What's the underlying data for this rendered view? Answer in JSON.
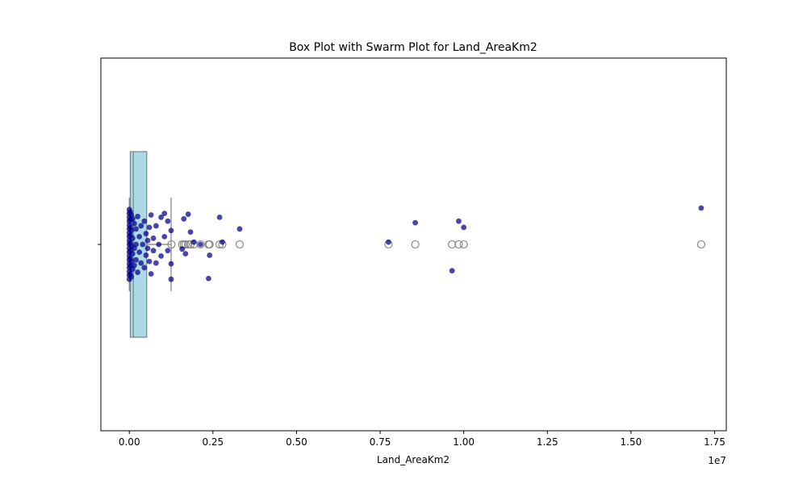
{
  "chart_data": {
    "type": "box",
    "title": "Box Plot with Swarm Plot for Land_AreaKm2",
    "xlabel": "Land_AreaKm2",
    "ylabel": "",
    "x_offset_label": "1e7",
    "xlim": [
      -0.085,
      1.785
    ],
    "x_ticks": [
      0.0,
      0.25,
      0.5,
      0.75,
      1.0,
      1.25,
      1.5,
      1.75
    ],
    "x_tick_labels": [
      "0.00",
      "0.25",
      "0.50",
      "0.75",
      "1.00",
      "1.25",
      "1.50",
      "1.75"
    ],
    "grid": false,
    "colors": {
      "box_fill": "#add8e6",
      "box_edge": "#808080",
      "swarm_point": "#00008b",
      "outlier_edge": "#808080"
    },
    "box": {
      "min": 0.0,
      "q1": 0.003,
      "median": 0.012,
      "q3": 0.052,
      "whisker_high": 0.125
    },
    "outliers": [
      0.126,
      0.158,
      0.163,
      0.168,
      0.176,
      0.183,
      0.193,
      0.213,
      0.237,
      0.24,
      0.27,
      0.278,
      0.33,
      0.775,
      0.855,
      0.965,
      0.985,
      1.0,
      1.71
    ],
    "swarm": [
      {
        "x": 0.0,
        "y": 0.45
      },
      {
        "x": 0.0,
        "y": 0.4
      },
      {
        "x": 0.0,
        "y": 0.35
      },
      {
        "x": 0.0,
        "y": 0.3
      },
      {
        "x": 0.0,
        "y": 0.25
      },
      {
        "x": 0.0,
        "y": 0.2
      },
      {
        "x": 0.0,
        "y": 0.15
      },
      {
        "x": 0.0,
        "y": 0.1
      },
      {
        "x": 0.0,
        "y": 0.05
      },
      {
        "x": 0.0,
        "y": 0.0
      },
      {
        "x": 0.0,
        "y": -0.05
      },
      {
        "x": 0.0,
        "y": -0.1
      },
      {
        "x": 0.0,
        "y": -0.15
      },
      {
        "x": 0.0,
        "y": -0.2
      },
      {
        "x": 0.0,
        "y": -0.25
      },
      {
        "x": 0.0,
        "y": -0.3
      },
      {
        "x": 0.0,
        "y": -0.35
      },
      {
        "x": 0.0,
        "y": -0.4
      },
      {
        "x": 0.0,
        "y": -0.45
      },
      {
        "x": 0.003,
        "y": 0.42
      },
      {
        "x": 0.003,
        "y": 0.32
      },
      {
        "x": 0.003,
        "y": 0.22
      },
      {
        "x": 0.003,
        "y": 0.12
      },
      {
        "x": 0.003,
        "y": 0.02
      },
      {
        "x": 0.003,
        "y": -0.08
      },
      {
        "x": 0.003,
        "y": -0.18
      },
      {
        "x": 0.003,
        "y": -0.28
      },
      {
        "x": 0.003,
        "y": -0.38
      },
      {
        "x": 0.006,
        "y": 0.38
      },
      {
        "x": 0.006,
        "y": 0.18
      },
      {
        "x": 0.006,
        "y": -0.02
      },
      {
        "x": 0.006,
        "y": -0.22
      },
      {
        "x": 0.006,
        "y": -0.42
      },
      {
        "x": 0.01,
        "y": 0.33
      },
      {
        "x": 0.01,
        "y": 0.08
      },
      {
        "x": 0.01,
        "y": -0.12
      },
      {
        "x": 0.01,
        "y": -0.32
      },
      {
        "x": 0.015,
        "y": 0.27
      },
      {
        "x": 0.015,
        "y": -0.05
      },
      {
        "x": 0.015,
        "y": -0.27
      },
      {
        "x": 0.02,
        "y": 0.2
      },
      {
        "x": 0.02,
        "y": 0.0
      },
      {
        "x": 0.02,
        "y": -0.2
      },
      {
        "x": 0.025,
        "y": 0.36
      },
      {
        "x": 0.025,
        "y": -0.36
      },
      {
        "x": 0.03,
        "y": 0.1
      },
      {
        "x": 0.03,
        "y": -0.1
      },
      {
        "x": 0.035,
        "y": 0.24
      },
      {
        "x": 0.035,
        "y": -0.24
      },
      {
        "x": 0.04,
        "y": 0.0
      },
      {
        "x": 0.045,
        "y": 0.3
      },
      {
        "x": 0.045,
        "y": -0.3
      },
      {
        "x": 0.05,
        "y": 0.14
      },
      {
        "x": 0.05,
        "y": -0.14
      },
      {
        "x": 0.055,
        "y": 0.05
      },
      {
        "x": 0.055,
        "y": -0.05
      },
      {
        "x": 0.06,
        "y": 0.22
      },
      {
        "x": 0.06,
        "y": -0.22
      },
      {
        "x": 0.065,
        "y": 0.38
      },
      {
        "x": 0.065,
        "y": -0.38
      },
      {
        "x": 0.072,
        "y": 0.08
      },
      {
        "x": 0.072,
        "y": -0.08
      },
      {
        "x": 0.08,
        "y": 0.24
      },
      {
        "x": 0.08,
        "y": -0.24
      },
      {
        "x": 0.088,
        "y": 0.0
      },
      {
        "x": 0.095,
        "y": 0.35
      },
      {
        "x": 0.095,
        "y": -0.15
      },
      {
        "x": 0.105,
        "y": 0.1
      },
      {
        "x": 0.105,
        "y": 0.4
      },
      {
        "x": 0.115,
        "y": -0.08
      },
      {
        "x": 0.115,
        "y": 0.3
      },
      {
        "x": 0.125,
        "y": 0.18
      },
      {
        "x": 0.125,
        "y": -0.25
      },
      {
        "x": 0.125,
        "y": -0.45
      },
      {
        "x": 0.158,
        "y": -0.06
      },
      {
        "x": 0.163,
        "y": 0.33
      },
      {
        "x": 0.168,
        "y": -0.12
      },
      {
        "x": 0.176,
        "y": 0.39
      },
      {
        "x": 0.183,
        "y": 0.16
      },
      {
        "x": 0.193,
        "y": 0.03
      },
      {
        "x": 0.213,
        "y": 0.0
      },
      {
        "x": 0.237,
        "y": -0.44
      },
      {
        "x": 0.24,
        "y": -0.14
      },
      {
        "x": 0.27,
        "y": 0.35
      },
      {
        "x": 0.278,
        "y": 0.03
      },
      {
        "x": 0.33,
        "y": 0.2
      },
      {
        "x": 0.775,
        "y": 0.03
      },
      {
        "x": 0.855,
        "y": 0.28
      },
      {
        "x": 0.965,
        "y": -0.34
      },
      {
        "x": 0.985,
        "y": 0.3
      },
      {
        "x": 1.0,
        "y": 0.22
      },
      {
        "x": 1.71,
        "y": 0.47
      }
    ]
  }
}
